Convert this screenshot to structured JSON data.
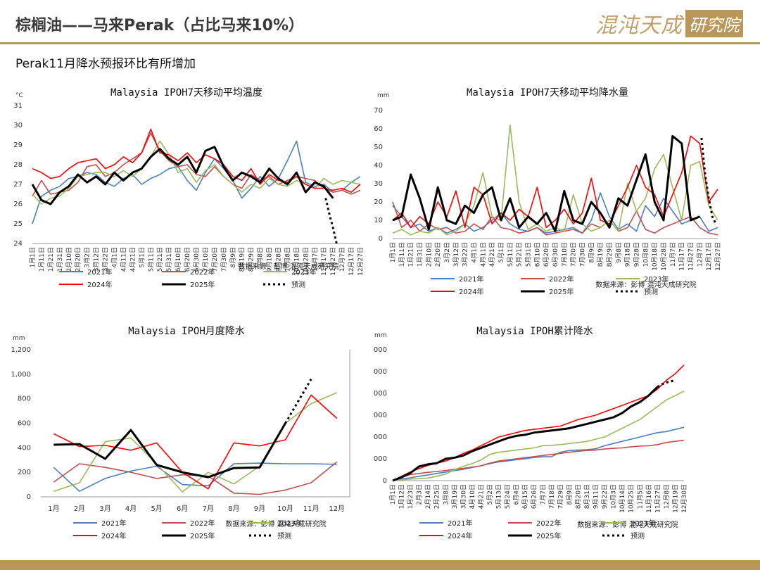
{
  "header": {
    "title": "棕榈油——马来Perak（占比马来10%）",
    "subtitle": "Perak11月降水预报环比有所增加",
    "logo_text": "混沌天成",
    "logo_box_text": "研究院"
  },
  "colors": {
    "2021年": "#4a7fc1",
    "2022年": "#c0504d",
    "2023年": "#9bbb59",
    "2024年": "#ff0000",
    "2025年": "#000000",
    "预测": "#000000",
    "accent": "#b9975b"
  },
  "legend": [
    "2021年",
    "2022年",
    "2023年",
    "2024年",
    "2025年",
    "预测"
  ],
  "source_text": "数据来源：彭博  混沌天成研究院",
  "chart_data": [
    {
      "id": "temp",
      "type": "line",
      "title": "Malaysia IPOH7天移动平均温度",
      "unit": "°C",
      "ylim": [
        24,
        31
      ],
      "yticks": [
        "24",
        "25",
        "26",
        "27",
        "28",
        "29",
        "30",
        "31"
      ],
      "x_labels": [
        "1月1日",
        "1月11日",
        "1月21日",
        "1月31日",
        "2月10日",
        "2月20日",
        "3月2日",
        "3月12日",
        "3月22日",
        "4月1日",
        "4月11日",
        "4月21日",
        "5月1日",
        "5月11日",
        "5月21日",
        "5月31日",
        "6月10日",
        "6月20日",
        "6月30日",
        "7月10日",
        "7月20日",
        "7月30日",
        "8月9日",
        "8月19日",
        "8月29日",
        "9月8日",
        "9月18日",
        "9月28日",
        "10月8日",
        "10月18日",
        "10月28日",
        "11月7日",
        "11月17日",
        "11月27日",
        "12月7日",
        "12月17日",
        "12月27日"
      ],
      "series": [
        {
          "name": "2021年",
          "values": [
            25.0,
            26.4,
            26.7,
            26.9,
            27.3,
            27.4,
            27.6,
            27.5,
            27.1,
            26.9,
            27.3,
            27.5,
            27.0,
            27.3,
            27.5,
            27.8,
            27.9,
            27.2,
            26.7,
            27.6,
            28.3,
            27.8,
            27.2,
            26.3,
            26.8,
            27.4,
            26.9,
            27.3,
            28.2,
            29.2,
            27.1,
            26.9,
            27.0,
            26.6,
            26.7,
            27.1,
            27.4
          ]
        },
        {
          "name": "2022年",
          "values": [
            26.4,
            27.2,
            26.5,
            26.6,
            26.7,
            27.1,
            27.9,
            28.0,
            27.4,
            27.6,
            28.0,
            28.3,
            28.6,
            29.6,
            28.7,
            28.2,
            27.9,
            28.0,
            27.5,
            27.4,
            27.9,
            27.4,
            27.0,
            26.8,
            27.5,
            27.2,
            27.4,
            27.0,
            27.2,
            27.4,
            27.3,
            27.2,
            26.8,
            26.6,
            26.7,
            26.5,
            26.7
          ]
        },
        {
          "name": "2023年",
          "values": [
            26.5,
            26.0,
            26.3,
            26.4,
            26.8,
            27.4,
            27.5,
            27.6,
            27.6,
            27.4,
            27.7,
            27.4,
            27.8,
            28.4,
            29.2,
            28.5,
            27.6,
            27.8,
            27.1,
            27.7,
            28.0,
            27.4,
            27.0,
            26.6,
            27.0,
            26.8,
            27.3,
            27.0,
            26.9,
            27.2,
            27.0,
            26.8,
            27.3,
            27.0,
            27.2,
            27.1,
            27.0
          ]
        },
        {
          "name": "2024年",
          "values": [
            27.8,
            27.6,
            27.3,
            27.4,
            27.8,
            28.1,
            28.2,
            28.3,
            27.8,
            28.0,
            28.4,
            28.1,
            28.6,
            29.8,
            28.6,
            28.5,
            28.2,
            28.6,
            28.1,
            28.5,
            28.3,
            28.0,
            27.4,
            27.2,
            27.8,
            27.0,
            27.5,
            27.2,
            27.1,
            27.4,
            27.0,
            26.8,
            26.8,
            26.7,
            26.8,
            26.6,
            27.0
          ]
        },
        {
          "name": "2025年",
          "values": [
            27.0,
            26.2,
            26.0,
            26.6,
            26.9,
            27.5,
            27.1,
            27.4,
            27.0,
            27.6,
            27.2,
            27.6,
            27.8,
            28.4,
            28.8,
            28.3,
            28.0,
            28.4,
            27.6,
            28.7,
            28.9,
            27.9,
            27.2,
            27.6,
            27.4,
            27.1,
            27.8,
            27.3,
            27.0,
            27.6,
            26.6,
            27.1,
            26.9,
            26.3
          ]
        },
        {
          "name": "预测",
          "dotted": true,
          "x": [
            32.2,
            32.6,
            33.0,
            33.4
          ],
          "values": [
            26.3,
            25.5,
            24.8,
            24.0
          ]
        }
      ]
    },
    {
      "id": "rain7",
      "type": "line",
      "title": "Malaysia IPOH7天移动平均降水量",
      "unit": "mm",
      "ylim": [
        0,
        70
      ],
      "yticks": [
        "0",
        "10",
        "20",
        "30",
        "40",
        "50",
        "60",
        "70"
      ],
      "x_labels": [
        "1月1日",
        "1月11日",
        "1月21日",
        "1月31日",
        "2月10日",
        "2月20日",
        "3月2日",
        "3月12日",
        "3月22日",
        "4月1日",
        "4月11日",
        "4月21日",
        "5月1日",
        "5月11日",
        "5月21日",
        "5月31日",
        "6月10日",
        "6月20日",
        "6月30日",
        "7月10日",
        "7月20日",
        "7月30日",
        "8月9日",
        "8月19日",
        "8月29日",
        "9月8日",
        "9月18日",
        "9月28日",
        "10月8日",
        "10月18日",
        "10月28日",
        "11月7日",
        "11月17日",
        "11月27日",
        "12月7日",
        "12月17日",
        "12月27日"
      ],
      "series": [
        {
          "name": "2021年",
          "values": [
            18,
            12,
            6,
            8,
            4,
            6,
            3,
            5,
            8,
            4,
            6,
            10,
            14,
            8,
            5,
            4,
            6,
            3,
            4,
            5,
            6,
            3,
            10,
            25,
            12,
            5,
            8,
            4,
            18,
            12,
            22,
            15,
            8,
            10,
            12,
            4,
            6
          ]
        },
        {
          "name": "2022年",
          "values": [
            20,
            6,
            10,
            4,
            8,
            5,
            6,
            3,
            4,
            8,
            5,
            12,
            6,
            5,
            3,
            4,
            6,
            2,
            3,
            4,
            5,
            3,
            8,
            6,
            10,
            4,
            6,
            15,
            5,
            3,
            6,
            8,
            10,
            12,
            6,
            3,
            2
          ]
        },
        {
          "name": "2023年",
          "values": [
            3,
            5,
            2,
            4,
            3,
            6,
            2,
            4,
            8,
            18,
            36,
            12,
            10,
            62,
            20,
            5,
            8,
            4,
            6,
            4,
            24,
            8,
            4,
            6,
            10,
            4,
            30,
            15,
            22,
            38,
            46,
            28,
            10,
            40,
            42,
            18,
            10
          ]
        },
        {
          "name": "2024年",
          "values": [
            10,
            14,
            6,
            12,
            8,
            20,
            12,
            26,
            6,
            28,
            24,
            8,
            14,
            10,
            16,
            12,
            28,
            6,
            10,
            16,
            8,
            14,
            33,
            10,
            8,
            18,
            28,
            40,
            28,
            24,
            12,
            24,
            36,
            56,
            52,
            20,
            27
          ]
        },
        {
          "name": "2025年",
          "values": [
            10,
            12,
            35,
            22,
            5,
            28,
            10,
            8,
            18,
            14,
            24,
            28,
            10,
            22,
            6,
            12,
            8,
            14,
            4,
            26,
            10,
            8,
            20,
            14,
            6,
            22,
            18,
            32,
            46,
            20,
            10,
            56,
            52,
            10,
            12
          ]
        },
        {
          "name": "预测",
          "dotted": true,
          "x": [
            34.2,
            34.6,
            35.0,
            35.4,
            35.8
          ],
          "values": [
            55,
            35,
            22,
            12,
            8
          ]
        }
      ]
    },
    {
      "id": "monthly",
      "type": "line",
      "title": "Malaysia IPOH月度降水",
      "unit": "mm",
      "ylim": [
        0,
        1200
      ],
      "yticks": [
        "0",
        "200",
        "400",
        "600",
        "800",
        "1,000",
        "1,200"
      ],
      "x_labels": [
        "1月",
        "2月",
        "3月",
        "4月",
        "5月",
        "6月",
        "7月",
        "8月",
        "9月",
        "10月",
        "11月",
        "12月"
      ],
      "series": [
        {
          "name": "2021年",
          "values": [
            240,
            45,
            150,
            210,
            250,
            100,
            90,
            270,
            275,
            270,
            270,
            265
          ]
        },
        {
          "name": "2022年",
          "values": [
            120,
            270,
            240,
            200,
            150,
            180,
            170,
            30,
            20,
            55,
            115,
            285
          ]
        },
        {
          "name": "2023年",
          "values": [
            45,
            115,
            450,
            480,
            270,
            40,
            200,
            105,
            250,
            600,
            760,
            850
          ]
        },
        {
          "name": "2024年",
          "values": [
            515,
            410,
            420,
            380,
            440,
            200,
            65,
            440,
            415,
            465,
            830,
            640
          ]
        },
        {
          "name": "2025年",
          "values": [
            425,
            430,
            310,
            545,
            260,
            200,
            160,
            235,
            240,
            600
          ]
        },
        {
          "name": "预测",
          "dotted": true,
          "x": [
            9,
            10
          ],
          "values": [
            600,
            960
          ]
        }
      ]
    },
    {
      "id": "cum",
      "type": "line",
      "title": "Malaysia IPOH累计降水",
      "unit": "mm",
      "ylim": [
        0,
        6000
      ],
      "yticks": [
        "0",
        "1,000",
        "2,000",
        "3,000",
        "4,000",
        "5,000",
        "6,000"
      ],
      "x_labels": [
        "1月1日",
        "1月12日",
        "1月23日",
        "2月3日",
        "2月14日",
        "2月25日",
        "3月8日",
        "3月19日",
        "3月30日",
        "4月10日",
        "4月21日",
        "5月2日",
        "5月13日",
        "5月24日",
        "6月4日",
        "6月15日",
        "6月26日",
        "7月7日",
        "7月18日",
        "7月29日",
        "8月9日",
        "8月20日",
        "8月31日",
        "9月11日",
        "9月22日",
        "10月3日",
        "10月14日",
        "10月25日",
        "11月5日",
        "11月16日",
        "11月27日",
        "12月8日",
        "12月19日",
        "12月30日"
      ],
      "series": [
        {
          "name": "2021年",
          "values": [
            0,
            80,
            130,
            200,
            260,
            330,
            390,
            460,
            520,
            600,
            680,
            780,
            860,
            900,
            960,
            1000,
            1060,
            1090,
            1100,
            1300,
            1380,
            1400,
            1420,
            1460,
            1600,
            1700,
            1800,
            1900,
            2000,
            2100,
            2200,
            2250,
            2350,
            2450
          ]
        },
        {
          "name": "2022年",
          "values": [
            0,
            150,
            280,
            330,
            380,
            420,
            460,
            520,
            560,
            620,
            680,
            800,
            900,
            950,
            1000,
            1050,
            1100,
            1150,
            1200,
            1250,
            1300,
            1350,
            1380,
            1400,
            1450,
            1480,
            1500,
            1550,
            1580,
            1600,
            1650,
            1750,
            1800,
            1850
          ]
        },
        {
          "name": "2023年",
          "values": [
            0,
            40,
            70,
            90,
            120,
            200,
            300,
            500,
            650,
            780,
            950,
            1200,
            1300,
            1350,
            1400,
            1450,
            1500,
            1600,
            1620,
            1650,
            1700,
            1750,
            1800,
            1900,
            2000,
            2200,
            2400,
            2600,
            2800,
            3100,
            3400,
            3700,
            3900,
            4100
          ]
        },
        {
          "name": "2024年",
          "values": [
            0,
            200,
            400,
            550,
            700,
            800,
            900,
            1050,
            1250,
            1400,
            1600,
            1800,
            2000,
            2100,
            2200,
            2300,
            2350,
            2400,
            2450,
            2500,
            2650,
            2800,
            2900,
            3000,
            3150,
            3300,
            3450,
            3600,
            3750,
            3900,
            4200,
            4600,
            4900,
            5300
          ]
        },
        {
          "name": "2025年",
          "values": [
            0,
            150,
            350,
            650,
            750,
            800,
            1000,
            1050,
            1150,
            1350,
            1500,
            1650,
            1800,
            1950,
            2050,
            2100,
            2200,
            2250,
            2300,
            2350,
            2400,
            2500,
            2600,
            2700,
            2800,
            2900,
            3100,
            3400,
            3600,
            3900,
            4300
          ]
        },
        {
          "name": "预测",
          "dotted": true,
          "x": [
            30,
            30.5,
            31,
            31.5,
            32
          ],
          "values": [
            4300,
            4420,
            4500,
            4550,
            4600
          ]
        }
      ]
    }
  ]
}
